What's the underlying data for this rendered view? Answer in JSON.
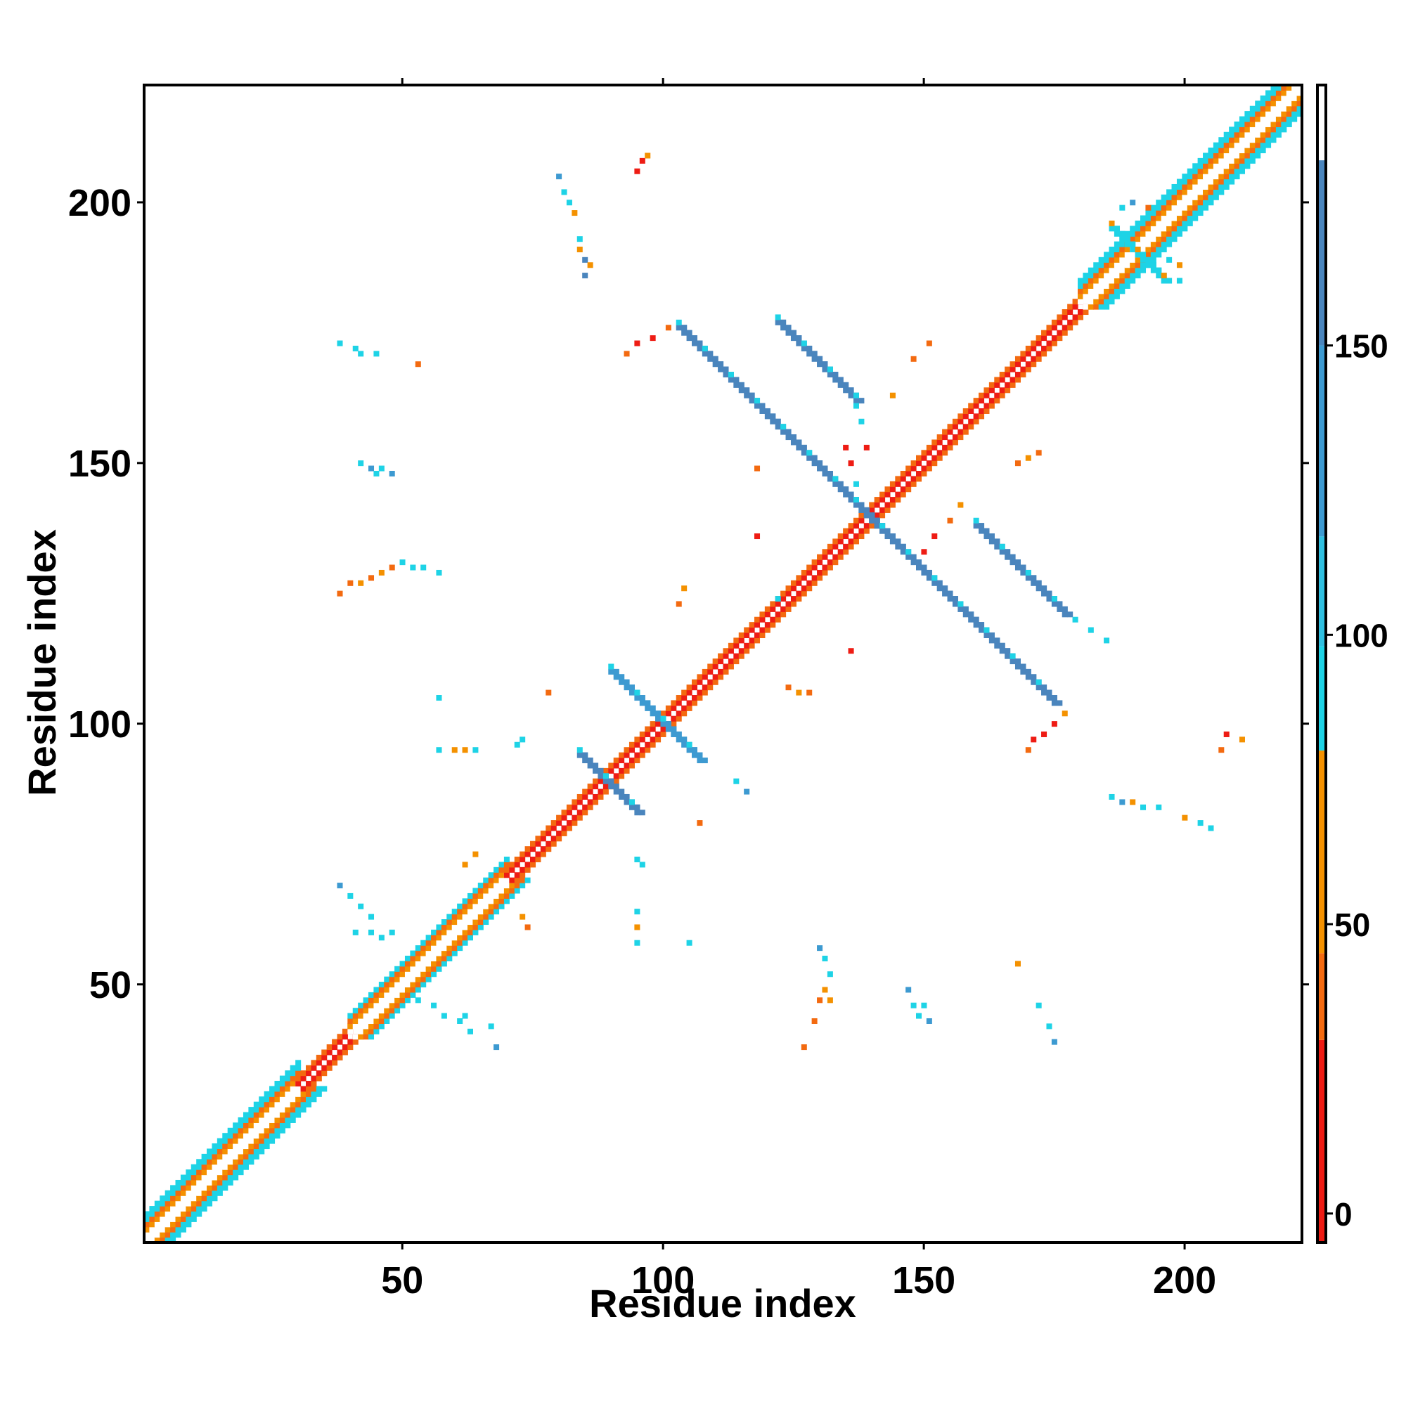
{
  "chart_data": {
    "type": "heatmap",
    "title": "",
    "xlabel": "Residue index",
    "ylabel": "Residue index",
    "xlim": [
      0.5,
      222.5
    ],
    "ylim": [
      0.5,
      222.5
    ],
    "x_ticks": [
      50,
      100,
      150,
      200
    ],
    "y_ticks": [
      50,
      100,
      150,
      200
    ],
    "colorbar": {
      "range": [
        -5,
        195
      ],
      "ticks": [
        0,
        50,
        100,
        150
      ],
      "bands": [
        {
          "from": -5,
          "to": 30,
          "color": "#ee1c14"
        },
        {
          "from": 30,
          "to": 45,
          "color": "#f36a10"
        },
        {
          "from": 45,
          "to": 80,
          "color": "#f49100"
        },
        {
          "from": 80,
          "to": 98,
          "color": "#1ed3e6"
        },
        {
          "from": 98,
          "to": 117,
          "color": "#2fbfe0"
        },
        {
          "from": 117,
          "to": 150,
          "color": "#3d9ad1"
        },
        {
          "from": 150,
          "to": 182,
          "color": "#4a85bd"
        },
        {
          "from": 182,
          "to": 195,
          "color": "#ffffff"
        }
      ]
    },
    "diagonal_band": {
      "description": "contacts near the main diagonal (i ~ j)",
      "segments": [
        {
          "from": 1,
          "to": 30,
          "offsets": [
            [
              1,
              "#ffffff"
            ],
            [
              2,
              "#f49100"
            ],
            [
              3,
              "#f36a10"
            ],
            [
              4,
              "#1ed3e6"
            ],
            [
              5,
              "#1ed3e6"
            ]
          ]
        },
        {
          "from": 30,
          "to": 40,
          "offsets": [
            [
              1,
              "#ee1c14"
            ],
            [
              2,
              "#f36a10"
            ]
          ]
        },
        {
          "from": 40,
          "to": 70,
          "offsets": [
            [
              1,
              "#ffffff"
            ],
            [
              2,
              "#f49100"
            ],
            [
              3,
              "#f36a10"
            ],
            [
              4,
              "#1ed3e6"
            ]
          ]
        },
        {
          "from": 70,
          "to": 180,
          "offsets": [
            [
              1,
              "#ee1c14"
            ],
            [
              2,
              "#f36a10"
            ]
          ]
        },
        {
          "from": 180,
          "to": 222,
          "offsets": [
            [
              1,
              "#ffffff"
            ],
            [
              2,
              "#f49100"
            ],
            [
              3,
              "#f36a10"
            ],
            [
              4,
              "#1ed3e6"
            ],
            [
              5,
              "#1ed3e6"
            ]
          ]
        }
      ]
    },
    "antidiagonal_strands": [
      {
        "x_from": 103,
        "y_from": 176,
        "x_to": 142,
        "y_to": 137,
        "color": "#4a85bd",
        "edge_color": "#1ed3e6"
      },
      {
        "x_from": 122,
        "y_from": 177,
        "x_to": 137,
        "y_to": 160,
        "color": "#4a85bd",
        "edge_color": "#1ed3e6"
      },
      {
        "x_from": 137,
        "y_from": 142,
        "x_to": 175,
        "y_to": 102,
        "color": "#4a85bd",
        "edge_color": "#1ed3e6"
      },
      {
        "x_from": 160,
        "y_from": 138,
        "x_to": 177,
        "y_to": 120,
        "color": "#4a85bd",
        "edge_color": "#1ed3e6"
      },
      {
        "x_from": 84,
        "y_from": 94,
        "x_to": 95,
        "y_to": 80,
        "color": "#4a85bd",
        "edge_color": "#1ed3e6"
      },
      {
        "x_from": 90,
        "y_from": 110,
        "x_to": 107,
        "y_to": 90,
        "color": "#3d9ad1",
        "edge_color": "#1ed3e6"
      },
      {
        "x_from": 186,
        "y_from": 195,
        "x_to": 196,
        "y_to": 186,
        "color": "#1ed3e6",
        "edge_color": "#f49100"
      }
    ],
    "points": [
      [
        96,
        208,
        "#ee1c14"
      ],
      [
        97,
        209,
        "#f49100"
      ],
      [
        95,
        206,
        "#ee1c14"
      ],
      [
        80,
        205,
        "#3d9ad1"
      ],
      [
        81,
        202,
        "#1ed3e6"
      ],
      [
        82,
        200,
        "#1ed3e6"
      ],
      [
        83,
        198,
        "#f49100"
      ],
      [
        84,
        193,
        "#1ed3e6"
      ],
      [
        84,
        191,
        "#f49100"
      ],
      [
        85,
        189,
        "#4a85bd"
      ],
      [
        86,
        188,
        "#f49100"
      ],
      [
        85,
        186,
        "#4a85bd"
      ],
      [
        38,
        173,
        "#1ed3e6"
      ],
      [
        41,
        172,
        "#1ed3e6"
      ],
      [
        42,
        171,
        "#1ed3e6"
      ],
      [
        45,
        171,
        "#1ed3e6"
      ],
      [
        53,
        169,
        "#f36a10"
      ],
      [
        42,
        150,
        "#1ed3e6"
      ],
      [
        44,
        149,
        "#3d9ad1"
      ],
      [
        46,
        149,
        "#1ed3e6"
      ],
      [
        48,
        148,
        "#3d9ad1"
      ],
      [
        45,
        148,
        "#1ed3e6"
      ],
      [
        38,
        125,
        "#f36a10"
      ],
      [
        40,
        127,
        "#f36a10"
      ],
      [
        42,
        127,
        "#f49100"
      ],
      [
        44,
        128,
        "#f36a10"
      ],
      [
        46,
        129,
        "#f49100"
      ],
      [
        48,
        130,
        "#f36a10"
      ],
      [
        50,
        131,
        "#1ed3e6"
      ],
      [
        52,
        130,
        "#1ed3e6"
      ],
      [
        54,
        130,
        "#1ed3e6"
      ],
      [
        57,
        129,
        "#1ed3e6"
      ],
      [
        57,
        105,
        "#1ed3e6"
      ],
      [
        57,
        95,
        "#1ed3e6"
      ],
      [
        60,
        95,
        "#f49100"
      ],
      [
        62,
        95,
        "#f49100"
      ],
      [
        64,
        95,
        "#1ed3e6"
      ],
      [
        72,
        96,
        "#1ed3e6"
      ],
      [
        73,
        97,
        "#1ed3e6"
      ],
      [
        78,
        106,
        "#f36a10"
      ],
      [
        38,
        69,
        "#3d9ad1"
      ],
      [
        40,
        67,
        "#1ed3e6"
      ],
      [
        42,
        65,
        "#1ed3e6"
      ],
      [
        44,
        63,
        "#1ed3e6"
      ],
      [
        41,
        60,
        "#1ed3e6"
      ],
      [
        44,
        60,
        "#1ed3e6"
      ],
      [
        46,
        59,
        "#1ed3e6"
      ],
      [
        48,
        60,
        "#1ed3e6"
      ],
      [
        53,
        47,
        "#1ed3e6"
      ],
      [
        56,
        46,
        "#1ed3e6"
      ],
      [
        58,
        44,
        "#1ed3e6"
      ],
      [
        61,
        43,
        "#1ed3e6"
      ],
      [
        63,
        41,
        "#1ed3e6"
      ],
      [
        67,
        42,
        "#1ed3e6"
      ],
      [
        68,
        38,
        "#3d9ad1"
      ],
      [
        62,
        44,
        "#1ed3e6"
      ],
      [
        73,
        63,
        "#f49100"
      ],
      [
        74,
        61,
        "#f36a10"
      ],
      [
        62,
        73,
        "#f49100"
      ],
      [
        64,
        75,
        "#f49100"
      ],
      [
        95,
        64,
        "#1ed3e6"
      ],
      [
        95,
        61,
        "#f49100"
      ],
      [
        95,
        58,
        "#1ed3e6"
      ],
      [
        105,
        58,
        "#1ed3e6"
      ],
      [
        95,
        74,
        "#1ed3e6"
      ],
      [
        96,
        73,
        "#1ed3e6"
      ],
      [
        107,
        81,
        "#f36a10"
      ],
      [
        114,
        89,
        "#1ed3e6"
      ],
      [
        116,
        87,
        "#3d9ad1"
      ],
      [
        103,
        123,
        "#f36a10"
      ],
      [
        104,
        126,
        "#f49100"
      ],
      [
        118,
        136,
        "#ee1c14"
      ],
      [
        118,
        149,
        "#f36a10"
      ],
      [
        122,
        124,
        "#1ed3e6"
      ],
      [
        124,
        107,
        "#f36a10"
      ],
      [
        126,
        106,
        "#f49100"
      ],
      [
        128,
        106,
        "#f36a10"
      ],
      [
        136,
        114,
        "#ee1c14"
      ],
      [
        93,
        171,
        "#f36a10"
      ],
      [
        95,
        173,
        "#ee1c14"
      ],
      [
        98,
        174,
        "#ee1c14"
      ],
      [
        101,
        176,
        "#f36a10"
      ],
      [
        137,
        161,
        "#1ed3e6"
      ],
      [
        138,
        158,
        "#1ed3e6"
      ],
      [
        144,
        163,
        "#f49100"
      ],
      [
        148,
        170,
        "#f36a10"
      ],
      [
        151,
        173,
        "#f36a10"
      ],
      [
        137,
        146,
        "#1ed3e6"
      ],
      [
        135,
        153,
        "#ee1c14"
      ],
      [
        136,
        150,
        "#ee1c14"
      ],
      [
        139,
        153,
        "#ee1c14"
      ],
      [
        150,
        133,
        "#ee1c14"
      ],
      [
        152,
        136,
        "#ee1c14"
      ],
      [
        155,
        139,
        "#f36a10"
      ],
      [
        157,
        142,
        "#f49100"
      ],
      [
        168,
        150,
        "#f36a10"
      ],
      [
        170,
        151,
        "#f49100"
      ],
      [
        172,
        152,
        "#f36a10"
      ],
      [
        170,
        95,
        "#f36a10"
      ],
      [
        171,
        97,
        "#ee1c14"
      ],
      [
        173,
        98,
        "#ee1c14"
      ],
      [
        175,
        100,
        "#ee1c14"
      ],
      [
        177,
        102,
        "#f49100"
      ],
      [
        179,
        120,
        "#1ed3e6"
      ],
      [
        182,
        118,
        "#1ed3e6"
      ],
      [
        185,
        116,
        "#1ed3e6"
      ],
      [
        186,
        86,
        "#1ed3e6"
      ],
      [
        188,
        85,
        "#3d9ad1"
      ],
      [
        190,
        85,
        "#f49100"
      ],
      [
        192,
        84,
        "#1ed3e6"
      ],
      [
        195,
        84,
        "#1ed3e6"
      ],
      [
        200,
        82,
        "#f49100"
      ],
      [
        203,
        81,
        "#1ed3e6"
      ],
      [
        205,
        80,
        "#1ed3e6"
      ],
      [
        207,
        95,
        "#f36a10"
      ],
      [
        208,
        98,
        "#ee1c14"
      ],
      [
        211,
        97,
        "#f49100"
      ],
      [
        127,
        38,
        "#f36a10"
      ],
      [
        129,
        43,
        "#f36a10"
      ],
      [
        130,
        47,
        "#f36a10"
      ],
      [
        131,
        49,
        "#f49100"
      ],
      [
        132,
        52,
        "#1ed3e6"
      ],
      [
        131,
        55,
        "#1ed3e6"
      ],
      [
        130,
        57,
        "#3d9ad1"
      ],
      [
        132,
        47,
        "#f49100"
      ],
      [
        147,
        49,
        "#3d9ad1"
      ],
      [
        148,
        46,
        "#1ed3e6"
      ],
      [
        149,
        44,
        "#1ed3e6"
      ],
      [
        150,
        46,
        "#1ed3e6"
      ],
      [
        151,
        43,
        "#3d9ad1"
      ],
      [
        168,
        54,
        "#f49100"
      ],
      [
        172,
        46,
        "#1ed3e6"
      ],
      [
        174,
        42,
        "#1ed3e6"
      ],
      [
        175,
        39,
        "#3d9ad1"
      ],
      [
        188,
        199,
        "#1ed3e6"
      ],
      [
        190,
        200,
        "#3d9ad1"
      ],
      [
        193,
        199,
        "#f36a10"
      ],
      [
        197,
        189,
        "#1ed3e6"
      ],
      [
        199,
        188,
        "#f49100"
      ],
      [
        199,
        185,
        "#1ed3e6"
      ]
    ]
  }
}
